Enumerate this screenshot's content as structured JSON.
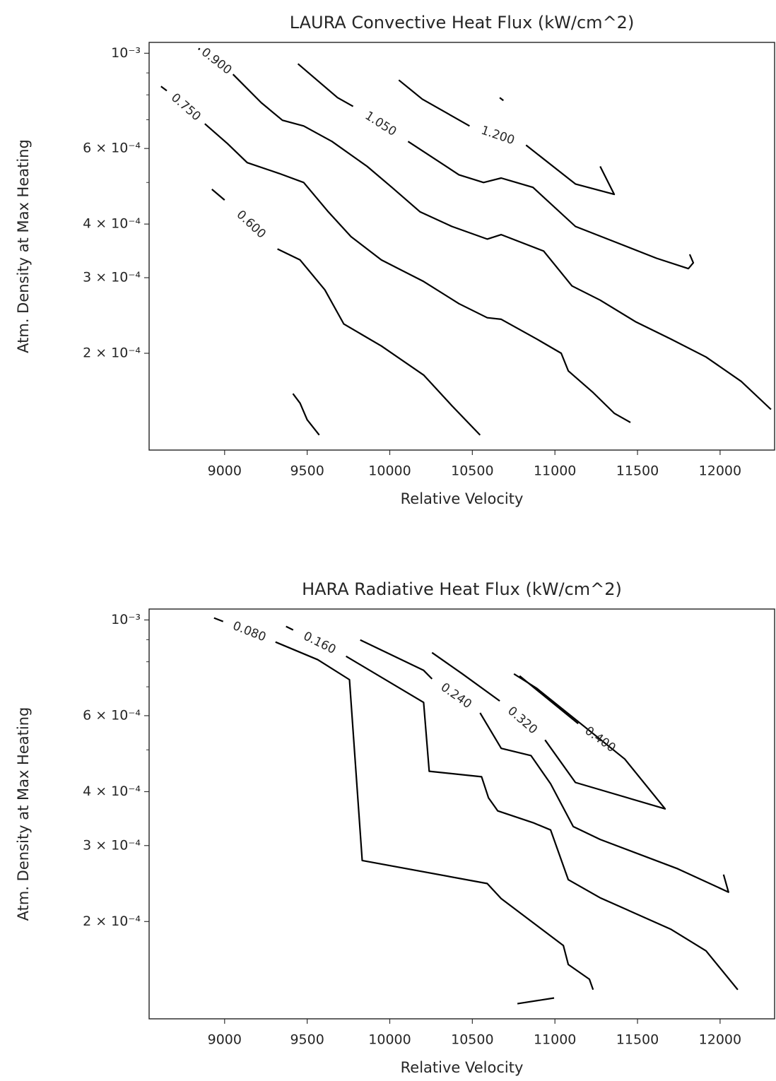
{
  "chart_data": [
    {
      "type": "contour",
      "title": "LAURA Convective Heat Flux (kW/cm^2)",
      "x_label": "Relative Velocity",
      "y_label": "Atm. Density at Max Heating",
      "xscale": "linear",
      "yscale": "log",
      "grid": false,
      "color": "#000000",
      "xlim": [
        8543,
        12330
      ],
      "ylim": [
        0.000119,
        0.00106
      ],
      "xticks": [
        9000,
        9500,
        10000,
        10500,
        11000,
        11500,
        12000
      ],
      "yticks": [
        {
          "value": 0.001,
          "label": "10⁻³"
        },
        {
          "value": 0.0006,
          "label": "6 × 10⁻⁴"
        },
        {
          "value": 0.0004,
          "label": "4 × 10⁻⁴"
        },
        {
          "value": 0.0003,
          "label": "3 × 10⁻⁴"
        },
        {
          "value": 0.0002,
          "label": "2 × 10⁻⁴"
        }
      ],
      "yminor": [
        0.0009,
        0.0008,
        0.0007,
        0.0005
      ],
      "series": [
        {
          "name": "0.600",
          "x": [
            8923,
            9000,
            null,
            9320,
            9457,
            9607,
            9722,
            9949,
            10205,
            10376,
            10547
          ],
          "y": [
            0.000482,
            0.000455,
            null,
            0.00035,
            0.00033,
            0.000281,
            0.000234,
            0.000208,
            0.000178,
            0.000151,
            0.000129
          ]
        },
        {
          "name": "0.750",
          "x": [
            8615,
            8650,
            null,
            8880,
            9017,
            9137,
            9329,
            9479,
            9628,
            9765,
            9949,
            10205,
            10419,
            10590,
            10675,
            10889,
            11038,
            11081,
            11231,
            11359,
            11457
          ],
          "y": [
            0.000837,
            0.000818,
            null,
            0.000685,
            0.000616,
            0.000556,
            0.000525,
            0.0005,
            0.000427,
            0.000374,
            0.00033,
            0.000294,
            0.000261,
            0.000242,
            0.00024,
            0.000216,
            0.0002,
            0.000182,
            0.000162,
            0.000145,
            0.000138
          ]
        },
        {
          "name": "0.900",
          "x": [
            8842,
            8850,
            null,
            9051,
            9222,
            9350,
            9479,
            9650,
            9863,
            10013,
            10184,
            10376,
            10590,
            10675,
            10932,
            11103,
            11274,
            11487,
            11701,
            11915,
            12128,
            12308
          ],
          "y": [
            0.001019,
            0.001027,
            null,
            0.000893,
            0.000767,
            0.000698,
            0.000677,
            0.000623,
            0.000545,
            0.000487,
            0.000427,
            0.000395,
            0.000369,
            0.000378,
            0.000346,
            0.000287,
            0.000266,
            0.000237,
            0.000216,
            0.000196,
            0.000172,
            0.000148
          ]
        },
        {
          "name": "1.050",
          "x": [
            9444,
            9684,
            9778,
            null,
            10111,
            10419,
            10568,
            10675,
            10867,
            11124,
            11359,
            11615,
            11808,
            11838,
            11816
          ],
          "y": [
            0.000945,
            0.000788,
            0.000752,
            null,
            0.000623,
            0.000521,
            0.0005,
            0.000512,
            0.000487,
            0.000395,
            0.000364,
            0.000333,
            0.000315,
            0.000325,
            0.00034
          ]
        },
        {
          "name": "1.200",
          "x": [
            10055,
            10197,
            10483,
            null,
            10825,
            11124,
            11359,
            11274
          ],
          "y": [
            0.000866,
            0.000782,
            0.000677,
            null,
            0.000611,
            0.000496,
            0.000469,
            0.000545
          ]
        },
        {
          "name": null,
          "x": [
            9414,
            9457,
            9500,
            9573
          ],
          "y": [
            0.000161,
            0.000153,
            0.00014,
            0.000129
          ]
        },
        {
          "name": null,
          "x": [
            10666,
            10688
          ],
          "y": [
            0.000788,
            0.000776
          ]
        }
      ]
    },
    {
      "type": "contour",
      "title": "HARA Radiative Heat Flux (kW/cm^2)",
      "x_label": "Relative Velocity",
      "y_label": "Atm. Density at Max Heating",
      "xscale": "linear",
      "yscale": "log",
      "grid": false,
      "color": "#000000",
      "xlim": [
        8543,
        12330
      ],
      "ylim": [
        0.000119,
        0.00106
      ],
      "xticks": [
        9000,
        9500,
        10000,
        10500,
        11000,
        11500,
        12000
      ],
      "yticks": [
        {
          "value": 0.001,
          "label": "10⁻³"
        },
        {
          "value": 0.0006,
          "label": "6 × 10⁻⁴"
        },
        {
          "value": 0.0004,
          "label": "4 × 10⁻⁴"
        },
        {
          "value": 0.0003,
          "label": "3 × 10⁻⁴"
        },
        {
          "value": 0.0002,
          "label": "2 × 10⁻⁴"
        }
      ],
      "yminor": [
        0.0009,
        0.0008,
        0.0007,
        0.0005
      ],
      "series": [
        {
          "name": "0.080",
          "x": [
            8936,
            8991,
            null,
            9308,
            9564,
            9756,
            9833,
            10590,
            10675,
            11051,
            11081,
            11209,
            11231
          ],
          "y": [
            0.001011,
            0.000992,
            null,
            0.000889,
            0.000809,
            0.000727,
            0.000277,
            0.000245,
            0.000226,
            0.000176,
            0.000159,
            0.000147,
            0.000139
          ]
        },
        {
          "name": "0.160",
          "x": [
            9372,
            9415,
            null,
            9735,
            10205,
            10239,
            10556,
            10598,
            10654,
            10868,
            10974,
            11081,
            11274,
            11701,
            11915,
            12107
          ],
          "y": [
            0.000966,
            0.000948,
            null,
            0.000824,
            0.000644,
            0.000446,
            0.000433,
            0.000387,
            0.000361,
            0.000339,
            0.000326,
            0.00025,
            0.000227,
            0.000192,
            0.000171,
            0.000139
          ]
        },
        {
          "name": "0.240",
          "x": [
            9821,
            10205,
            10256,
            null,
            10547,
            10675,
            10855,
            10974,
            11111,
            11274,
            11744,
            12051,
            12021
          ],
          "y": [
            0.000899,
            0.000764,
            0.00073,
            null,
            0.000609,
            0.000504,
            0.000485,
            0.000417,
            0.000332,
            0.00031,
            0.000265,
            0.000234,
            0.000257
          ]
        },
        {
          "name": "0.320",
          "x": [
            10256,
            10440,
            10666,
            null,
            10940,
            11124,
            11667,
            11423,
            10889,
            10752
          ],
          "y": [
            0.00084,
            0.00075,
            0.000649,
            null,
            0.000527,
            0.00042,
            0.000365,
            0.000476,
            0.000695,
            0.00075
          ]
        },
        {
          "name": "0.400",
          "x": [
            10786,
            11141,
            null,
            11406
          ],
          "y": [
            0.000742,
            0.000575,
            null,
            0.000485
          ]
        },
        {
          "name": null,
          "x": [
            10773,
            10995
          ],
          "y": [
            0.000129,
            0.000133
          ]
        }
      ]
    }
  ]
}
